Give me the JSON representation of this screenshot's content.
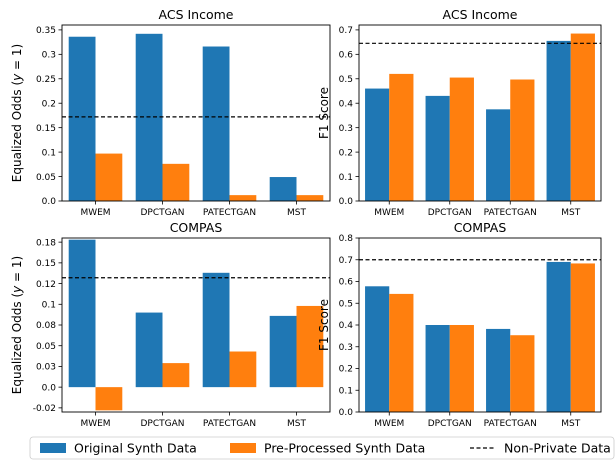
{
  "colors": {
    "original": "#1f77b4",
    "preprocessed": "#ff7f0e",
    "reference": "#000000"
  },
  "legend": {
    "items": [
      {
        "label": "Original Synth Data",
        "color": "#1f77b4",
        "kind": "patch"
      },
      {
        "label": "Pre-Processed Synth Data",
        "color": "#ff7f0e",
        "kind": "patch"
      },
      {
        "label": "Non-Private Data",
        "color": "#000000",
        "kind": "dashed-line"
      }
    ]
  },
  "chart_data": [
    {
      "type": "bar",
      "title": "ACS Income",
      "ylabel": "Equalized Odds (y = 1)",
      "categories": [
        "MWEM",
        "DPCTGAN",
        "PATECTGAN",
        "MST"
      ],
      "series": [
        {
          "name": "Original Synth Data",
          "values": [
            0.336,
            0.342,
            0.316,
            0.049
          ]
        },
        {
          "name": "Pre-Processed Synth Data",
          "values": [
            0.097,
            0.076,
            0.012,
            0.012
          ]
        }
      ],
      "reference": {
        "name": "Non-Private Data",
        "value": 0.172
      },
      "ylim": [
        0,
        0.36
      ],
      "yticks": [
        0,
        0.05,
        0.1,
        0.15,
        0.2,
        0.25,
        0.3,
        0.35
      ],
      "ytick_labels": [
        "0.0",
        "0.05",
        "0.1",
        "0.15",
        "0.2",
        "0.25",
        "0.3",
        "0.35"
      ]
    },
    {
      "type": "bar",
      "title": "ACS Income",
      "ylabel": "F1 Score",
      "categories": [
        "MWEM",
        "DPCTGAN",
        "PATECTGAN",
        "MST"
      ],
      "series": [
        {
          "name": "Original Synth Data",
          "values": [
            0.46,
            0.43,
            0.375,
            0.655
          ]
        },
        {
          "name": "Pre-Processed Synth Data",
          "values": [
            0.52,
            0.505,
            0.497,
            0.685
          ]
        }
      ],
      "reference": {
        "name": "Non-Private Data",
        "value": 0.645
      },
      "ylim": [
        0,
        0.72
      ],
      "yticks": [
        0,
        0.1,
        0.2,
        0.3,
        0.4,
        0.5,
        0.6,
        0.7
      ],
      "ytick_labels": [
        "0.0",
        "0.1",
        "0.2",
        "0.3",
        "0.4",
        "0.5",
        "0.6",
        "0.7"
      ]
    },
    {
      "type": "bar",
      "title": "COMPAS",
      "ylabel": "Equalized Odds (y = 1)",
      "categories": [
        "MWEM",
        "DPCTGAN",
        "PATECTGAN",
        "MST"
      ],
      "series": [
        {
          "name": "Original Synth Data",
          "values": [
            0.178,
            0.09,
            0.138,
            0.086
          ]
        },
        {
          "name": "Pre-Processed Synth Data",
          "values": [
            -0.028,
            0.029,
            0.043,
            0.098
          ]
        }
      ],
      "reference": {
        "name": "Non-Private Data",
        "value": 0.132
      },
      "ylim": [
        -0.03,
        0.18
      ],
      "yticks": [
        -0.025,
        0,
        0.025,
        0.05,
        0.075,
        0.1,
        0.125,
        0.15,
        0.175
      ],
      "ytick_labels": [
        "-0.02",
        "0.0",
        "0.03",
        "0.05",
        "0.08",
        "0.1",
        "0.12",
        "0.15",
        "0.18"
      ]
    },
    {
      "type": "bar",
      "title": "COMPAS",
      "ylabel": "F1 Score",
      "categories": [
        "MWEM",
        "DPCTGAN",
        "PATECTGAN",
        "MST"
      ],
      "series": [
        {
          "name": "Original Synth Data",
          "values": [
            0.578,
            0.4,
            0.382,
            0.69
          ]
        },
        {
          "name": "Pre-Processed Synth Data",
          "values": [
            0.543,
            0.4,
            0.353,
            0.683
          ]
        }
      ],
      "reference": {
        "name": "Non-Private Data",
        "value": 0.7
      },
      "ylim": [
        0,
        0.8
      ],
      "yticks": [
        0,
        0.1,
        0.2,
        0.3,
        0.4,
        0.5,
        0.6,
        0.7,
        0.8
      ],
      "ytick_labels": [
        "0.0",
        "0.1",
        "0.2",
        "0.3",
        "0.4",
        "0.5",
        "0.6",
        "0.7",
        "0.8"
      ]
    }
  ]
}
